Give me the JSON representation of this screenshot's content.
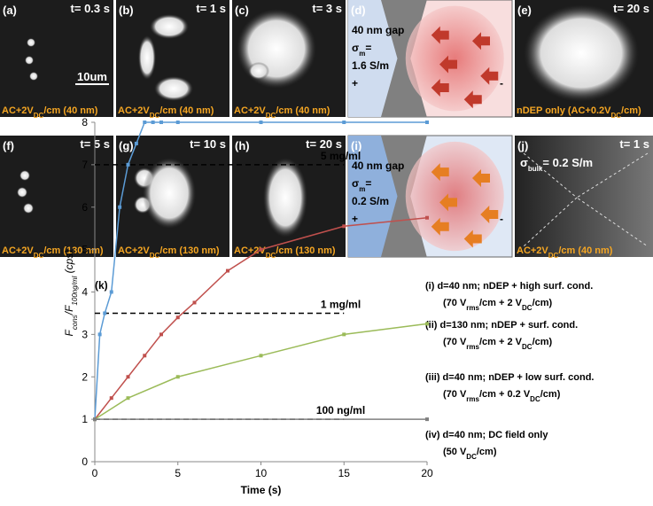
{
  "panels": [
    {
      "label": "(a)",
      "time": "t= 0.3 s",
      "scale": "10um",
      "caption": [
        "AC+2V",
        "DC",
        "/cm (40 nm)"
      ]
    },
    {
      "label": "(b)",
      "time": "t= 1 s",
      "caption": [
        "AC+2V",
        "DC",
        "/cm (40 nm)"
      ]
    },
    {
      "label": "(c)",
      "time": "t= 3 s",
      "caption": [
        "AC+2V",
        "DC",
        "/cm (40 nm)"
      ]
    },
    {
      "label": "(d)",
      "texts": [
        [
          "40 nm gap"
        ],
        [
          "σ",
          "m",
          "="
        ],
        [
          "1.6 S/m"
        ],
        [
          "+"
        ],
        [
          "-"
        ]
      ]
    },
    {
      "label": "(e)",
      "time": "t= 20 s",
      "caption": [
        "nDEP only (AC+0.2V",
        "DC",
        "/cm)"
      ]
    },
    {
      "label": "(f)",
      "time": "t= 5 s",
      "caption": [
        "AC+2V",
        "DC",
        "/cm (130 nm)"
      ]
    },
    {
      "label": "(g)",
      "time": "t= 10 s",
      "caption": [
        "AC+2V",
        "DC",
        "/cm (130 nm)"
      ]
    },
    {
      "label": "(h)",
      "time": "t= 20 s",
      "caption": [
        "AC+2V",
        "DC",
        "/cm (130 nm)"
      ]
    },
    {
      "label": "(i)",
      "texts": [
        [
          "40 nm gap"
        ],
        [
          "σ",
          "m",
          "="
        ],
        [
          "0.2 S/m"
        ],
        [
          "+"
        ],
        [
          "-"
        ]
      ]
    },
    {
      "label": "(j)",
      "time": "t= 1 s",
      "sigma": [
        "σ",
        "bulk",
        "= 0.2 S/m"
      ],
      "caption": [
        "AC+2V",
        "DC",
        "/cm (40 nm)"
      ]
    }
  ],
  "chart_data": {
    "type": "line",
    "title": "(k)",
    "xlabel": "Time (s)",
    "ylabel": [
      "F",
      "cons",
      "/F",
      "100ng/ml",
      " (cps)"
    ],
    "xlim": [
      0,
      20
    ],
    "ylim": [
      0,
      8
    ],
    "xticks": [
      0,
      5,
      10,
      15,
      20
    ],
    "yticks": [
      0,
      1,
      2,
      3,
      4,
      5,
      6,
      7,
      8
    ],
    "series": [
      {
        "name": "(i) d=40 nm; nDEP + high surf. cond.",
        "detail": [
          "(70 V",
          "rms",
          "/cm + 2 V",
          "DC",
          "/cm)"
        ],
        "color": "#5b9bd5",
        "x": [
          0,
          0.3,
          0.6,
          1,
          1.5,
          2,
          2.5,
          3,
          3.5,
          4,
          5,
          10,
          15,
          20
        ],
        "values": [
          1,
          3,
          3.5,
          4,
          6,
          7,
          7.5,
          8,
          8,
          8,
          8,
          8,
          8,
          8
        ]
      },
      {
        "name": "(ii) d=130 nm; nDEP + surf. cond.",
        "detail": [
          "(70 V",
          "rms",
          "/cm + 2 V",
          "DC",
          "/cm)"
        ],
        "color": "#c0504d",
        "x": [
          0,
          1,
          2,
          3,
          4,
          5,
          6,
          8,
          10,
          15,
          20
        ],
        "values": [
          1,
          1.5,
          2,
          2.5,
          3,
          3.4,
          3.75,
          4.5,
          5,
          5.55,
          5.75
        ]
      },
      {
        "name": "(iii) d=40 nm; nDEP + low surf. cond.",
        "detail": [
          "(70 V",
          "rms",
          "/cm + 0.2 V",
          "DC",
          "/cm)"
        ],
        "color": "#9bbb59",
        "x": [
          0,
          2,
          5,
          10,
          15,
          20
        ],
        "values": [
          1,
          1.5,
          2,
          2.5,
          3,
          3.25
        ]
      },
      {
        "name": "(iv) d=40 nm; DC field only",
        "detail": [
          "(50 V",
          "DC",
          "/cm)"
        ],
        "color": "#7f7f7f",
        "x": [
          0,
          20
        ],
        "values": [
          1,
          1
        ]
      }
    ],
    "reference_lines": [
      {
        "value": 7,
        "label": "5 mg/ml"
      },
      {
        "value": 3.5,
        "label": "1 mg/ml"
      },
      {
        "value": 1,
        "label": "100 ng/ml"
      }
    ]
  }
}
